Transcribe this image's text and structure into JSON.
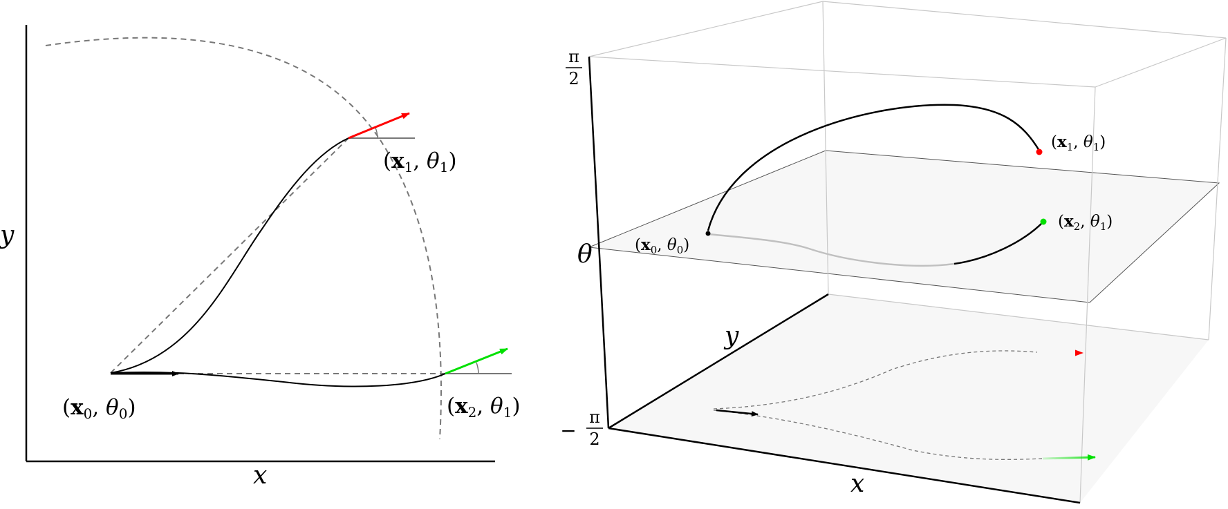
{
  "left_panel": {
    "axis_x": "x",
    "axis_y": "y",
    "label_start_pos": "x",
    "label_start_pos_sub": "0",
    "label_start_ang": "θ",
    "label_start_ang_sub": "0",
    "label_p1_pos": "x",
    "label_p1_pos_sub": "1",
    "label_p1_ang": "θ",
    "label_p1_ang_sub": "1",
    "label_p2_pos": "x",
    "label_p2_pos_sub": "2",
    "label_p2_ang": "θ",
    "label_p2_ang_sub": "1"
  },
  "right_panel": {
    "axis_x": "x",
    "axis_y": "y",
    "axis_theta": "θ",
    "tick_top_num": "π",
    "tick_top_den": "2",
    "tick_bottom_sign": "−",
    "tick_bottom_num": "π",
    "tick_bottom_den": "2",
    "label_start_pos": "x",
    "label_start_pos_sub": "0",
    "label_start_ang": "θ",
    "label_start_ang_sub": "0",
    "label_p1_pos": "x",
    "label_p1_pos_sub": "1",
    "label_p1_ang": "θ",
    "label_p1_ang_sub": "1",
    "label_p2_pos": "x",
    "label_p2_pos_sub": "2",
    "label_p2_ang": "θ",
    "label_p2_ang_sub": "1"
  },
  "colors": {
    "target_1": "#ff0000",
    "target_2": "#00e000",
    "start": "#000000",
    "dashed": "#777777",
    "box_edge": "#c8c8c8",
    "plane_fill": "#f7f7f7"
  }
}
